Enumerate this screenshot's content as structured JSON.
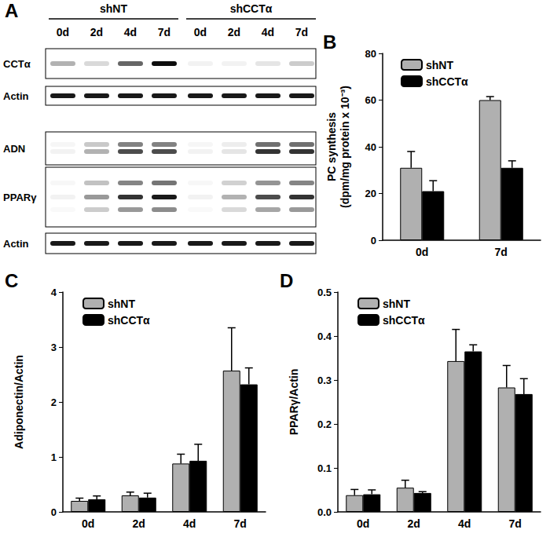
{
  "blot": {
    "panel": "A",
    "groups": [
      {
        "label": "shNT",
        "lanes": [
          "0d",
          "2d",
          "4d",
          "7d"
        ]
      },
      {
        "label": "shCCTα",
        "lanes": [
          "0d",
          "2d",
          "4d",
          "7d"
        ]
      }
    ],
    "rows": [
      {
        "label": "CCTα",
        "intensities": [
          0.3,
          0.15,
          0.6,
          0.95,
          0.05,
          0.05,
          0.1,
          0.2
        ]
      },
      {
        "label": "Actin",
        "intensities": [
          0.9,
          0.9,
          0.9,
          0.9,
          0.9,
          0.9,
          0.9,
          0.9
        ]
      },
      {
        "label": "ADN",
        "intensities": [
          0.05,
          0.3,
          0.7,
          0.7,
          0.05,
          0.1,
          0.8,
          0.8
        ]
      },
      {
        "label": "PPARγ",
        "intensities": [
          0.05,
          0.4,
          0.8,
          0.9,
          0.05,
          0.3,
          0.7,
          0.8
        ]
      },
      {
        "label": "Actin",
        "intensities": [
          0.9,
          0.9,
          0.9,
          0.9,
          0.9,
          0.9,
          0.9,
          0.9
        ]
      }
    ]
  },
  "chart_data": [
    {
      "type": "bar",
      "panel": "B",
      "ylabel": [
        "PC synthesis",
        "(dpm/mg protein x 10⁻³)"
      ],
      "categories": [
        "0d",
        "7d"
      ],
      "series": [
        {
          "name": "shNT",
          "color": "#b0b0b0",
          "values": [
            31,
            60
          ],
          "errors": [
            7,
            1.5
          ]
        },
        {
          "name": "shCCTα",
          "color": "#000000",
          "values": [
            21,
            31
          ],
          "errors": [
            4.5,
            3
          ]
        }
      ],
      "ylim": [
        0,
        80
      ],
      "yticks": [
        0,
        20,
        40,
        60,
        80
      ],
      "legend": "upper left",
      "grid": false
    },
    {
      "type": "bar",
      "panel": "C",
      "ylabel": [
        "Adiponectin/Actin"
      ],
      "categories": [
        "0d",
        "2d",
        "4d",
        "7d"
      ],
      "series": [
        {
          "name": "shNT",
          "color": "#b0b0b0",
          "values": [
            0.2,
            0.3,
            0.88,
            2.57
          ],
          "errors": [
            0.05,
            0.06,
            0.17,
            0.78
          ]
        },
        {
          "name": "shCCTα",
          "color": "#000000",
          "values": [
            0.23,
            0.26,
            0.93,
            2.32
          ],
          "errors": [
            0.06,
            0.08,
            0.3,
            0.3
          ]
        }
      ],
      "ylim": [
        0,
        4
      ],
      "yticks": [
        0,
        1,
        2,
        3,
        4
      ],
      "legend": "upper left",
      "grid": false
    },
    {
      "type": "bar",
      "panel": "D",
      "ylabel": [
        "PPARγ/Actin"
      ],
      "categories": [
        "0d",
        "2d",
        "4d",
        "7d"
      ],
      "series": [
        {
          "name": "shNT",
          "color": "#b0b0b0",
          "values": [
            0.038,
            0.055,
            0.343,
            0.283
          ],
          "errors": [
            0.013,
            0.017,
            0.072,
            0.05
          ]
        },
        {
          "name": "shCCTα",
          "color": "#000000",
          "values": [
            0.04,
            0.043,
            0.365,
            0.268
          ],
          "errors": [
            0.01,
            0.003,
            0.015,
            0.035
          ]
        }
      ],
      "ylim": [
        0,
        0.5
      ],
      "yticks": [
        {
          "value": 0,
          "label": "0.0"
        },
        0.1,
        0.2,
        0.3,
        0.4,
        0.5
      ],
      "legend": "upper left",
      "grid": false
    }
  ]
}
